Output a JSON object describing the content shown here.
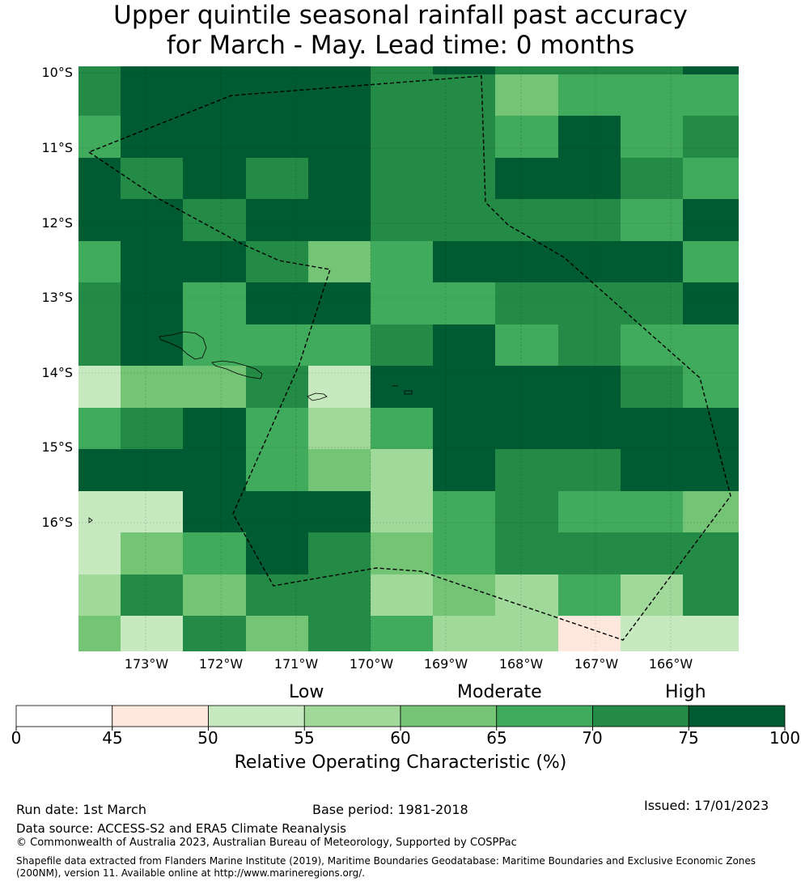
{
  "title": {
    "line1": "Upper quintile seasonal rainfall past accuracy",
    "line2": "for March - May. Lead time: 0 months"
  },
  "map": {
    "lat_labels": [
      "10°S",
      "11°S",
      "12°S",
      "13°S",
      "14°S",
      "15°S",
      "16°S"
    ],
    "lon_labels": [
      "173°W",
      "172°W",
      "171°W",
      "170°W",
      "169°W",
      "168°W",
      "167°W",
      "166°W"
    ],
    "palette": [
      "#ffffff",
      "#fee8de",
      "#c7e9c0",
      "#a1d99b",
      "#74c476",
      "#41ab5d",
      "#238b45",
      "#005a32"
    ],
    "grid_classes": [
      [
        6,
        7,
        7,
        7,
        7,
        6,
        7,
        6,
        6,
        6,
        7
      ],
      [
        6,
        7,
        7,
        7,
        7,
        6,
        6,
        4,
        5,
        5,
        5
      ],
      [
        5,
        7,
        7,
        7,
        7,
        6,
        6,
        5,
        7,
        5,
        6
      ],
      [
        7,
        6,
        7,
        6,
        7,
        6,
        6,
        7,
        7,
        6,
        5
      ],
      [
        7,
        7,
        6,
        7,
        7,
        6,
        6,
        6,
        6,
        5,
        7
      ],
      [
        5,
        7,
        7,
        6,
        4,
        5,
        7,
        7,
        7,
        7,
        5
      ],
      [
        6,
        7,
        5,
        7,
        7,
        5,
        5,
        6,
        6,
        6,
        7
      ],
      [
        6,
        7,
        5,
        5,
        5,
        6,
        7,
        5,
        6,
        5,
        5
      ],
      [
        2,
        4,
        4,
        6,
        2,
        7,
        7,
        7,
        7,
        6,
        5
      ],
      [
        5,
        6,
        7,
        5,
        3,
        5,
        7,
        7,
        7,
        7,
        7
      ],
      [
        7,
        7,
        7,
        5,
        4,
        3,
        7,
        6,
        6,
        7,
        7
      ],
      [
        2,
        2,
        7,
        7,
        7,
        3,
        5,
        6,
        5,
        5,
        4
      ],
      [
        2,
        4,
        5,
        7,
        6,
        4,
        5,
        6,
        6,
        6,
        6
      ],
      [
        3,
        6,
        4,
        6,
        6,
        3,
        4,
        3,
        5,
        3,
        6
      ],
      [
        4,
        2,
        6,
        4,
        6,
        5,
        3,
        3,
        1,
        2,
        2
      ]
    ]
  },
  "colorbar": {
    "ticks": [
      "0",
      "45",
      "50",
      "55",
      "60",
      "65",
      "70",
      "75",
      "100"
    ],
    "categories": {
      "low": "Low",
      "moderate": "Moderate",
      "high": "High"
    },
    "label": "Relative Operating Characteristic (%)"
  },
  "footer": {
    "run_date": "Run date: 1st March",
    "base_period": "Base period: 1981-2018",
    "issued": "Issued: 17/01/2023",
    "data_source": "Data source: ACCESS-S2 and ERA5 Climate Reanalysis",
    "copyright": "© Commonwealth of Australia 2023, Australian Bureau of Meteorology, Supported by COSPPac",
    "shapefile_line1": "Shapefile data extracted from Flanders Marine Institute (2019), Maritime Boundaries Geodatabase: Maritime Boundaries and Exclusive Economic Zones",
    "shapefile_line2": "(200NM), version 11. Available online at http://www.marineregions.org/."
  }
}
